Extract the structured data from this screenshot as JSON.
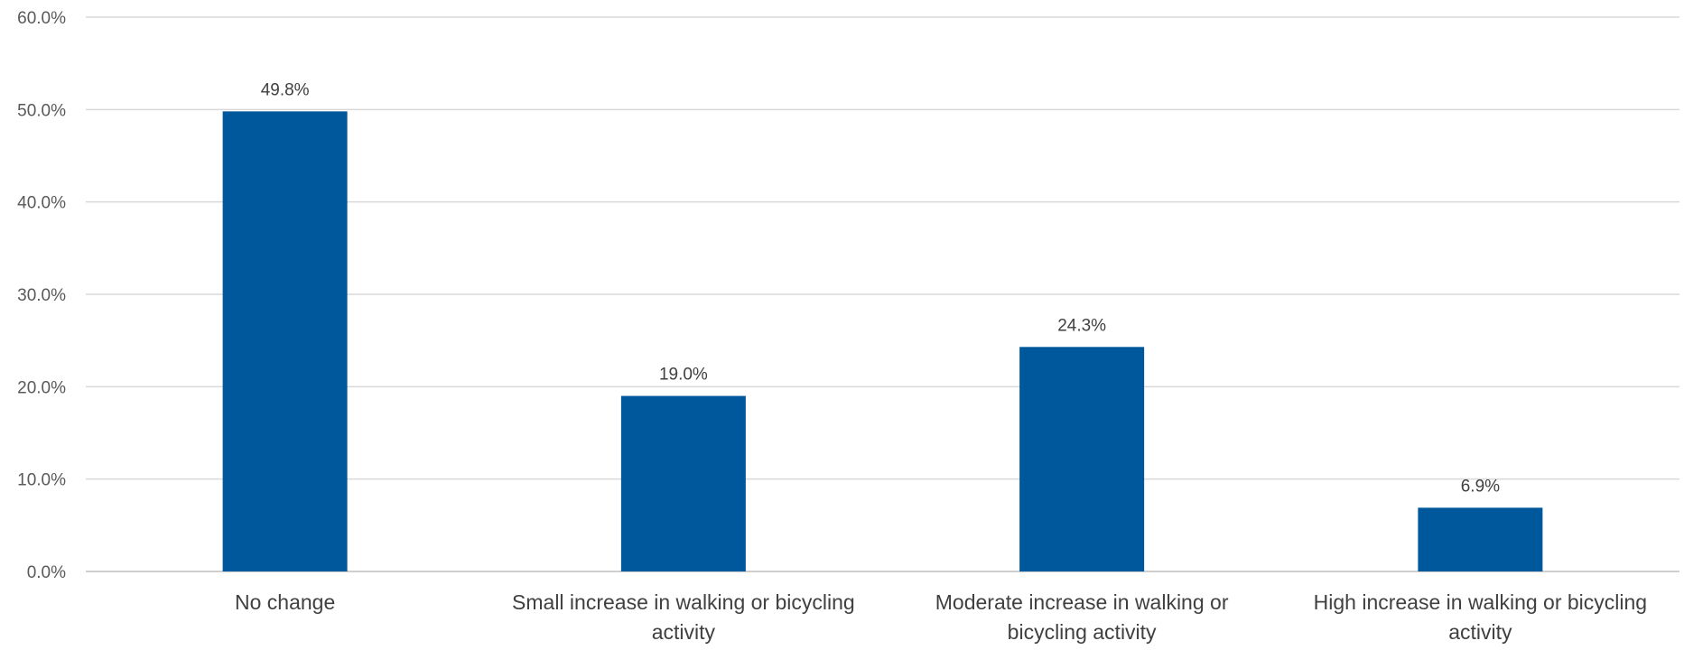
{
  "chart_data": {
    "type": "bar",
    "title": "",
    "xlabel": "",
    "ylabel": "",
    "categories": [
      [
        "No change"
      ],
      [
        "Small increase in walking or bicycling",
        "activity"
      ],
      [
        "Moderate increase in walking or",
        "bicycling activity"
      ],
      [
        "High increase in walking or bicycling",
        "activity"
      ]
    ],
    "values": [
      49.8,
      19.0,
      24.3,
      6.9
    ],
    "data_labels": [
      "49.8%",
      "19.0%",
      "24.3%",
      "6.9%"
    ],
    "ylim": [
      0,
      60
    ],
    "yticks": [
      0,
      10,
      20,
      30,
      40,
      50,
      60
    ],
    "ytick_labels": [
      "0.0%",
      "10.0%",
      "20.0%",
      "30.0%",
      "40.0%",
      "50.0%",
      "60.0%"
    ],
    "grid": true,
    "legend": "none",
    "bar_color": "#00589c"
  }
}
